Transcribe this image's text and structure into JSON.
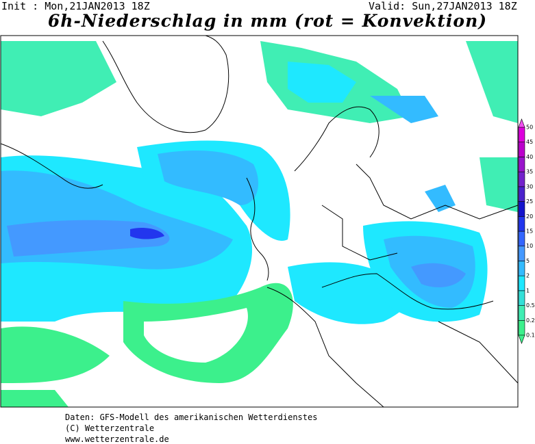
{
  "header": {
    "init": "Init : Mon,21JAN2013 18Z",
    "valid": "Valid: Sun,27JAN2013 18Z",
    "title": "6h-Niederschlag in mm (rot = Konvektion)"
  },
  "legend": {
    "levels": [
      {
        "label": 0.1,
        "color": "#3cf08c"
      },
      {
        "label": 0.2,
        "color": "#40eeb4"
      },
      {
        "label": 0.5,
        "color": "#33e0d8"
      },
      {
        "label": 1,
        "color": "#1ee8ff"
      },
      {
        "label": 2,
        "color": "#33bbff"
      },
      {
        "label": 5,
        "color": "#4499ff"
      },
      {
        "label": 10,
        "color": "#3366ff"
      },
      {
        "label": 15,
        "color": "#2236ee"
      },
      {
        "label": 20,
        "color": "#1414cc"
      },
      {
        "label": 25,
        "color": "#4a22cc"
      },
      {
        "label": 30,
        "color": "#7322cc"
      },
      {
        "label": 35,
        "color": "#9a14cc"
      },
      {
        "label": 40,
        "color": "#bb00cc"
      },
      {
        "label": 45,
        "color": "#dd00dd"
      },
      {
        "label": 50,
        "color": "#f050f0"
      }
    ]
  },
  "footer": {
    "lines": [
      "Daten: GFS-Modell des amerikanischen Wetterdienstes",
      "(C) Wetterzentrale",
      "www.wetterzentrale.de"
    ]
  }
}
